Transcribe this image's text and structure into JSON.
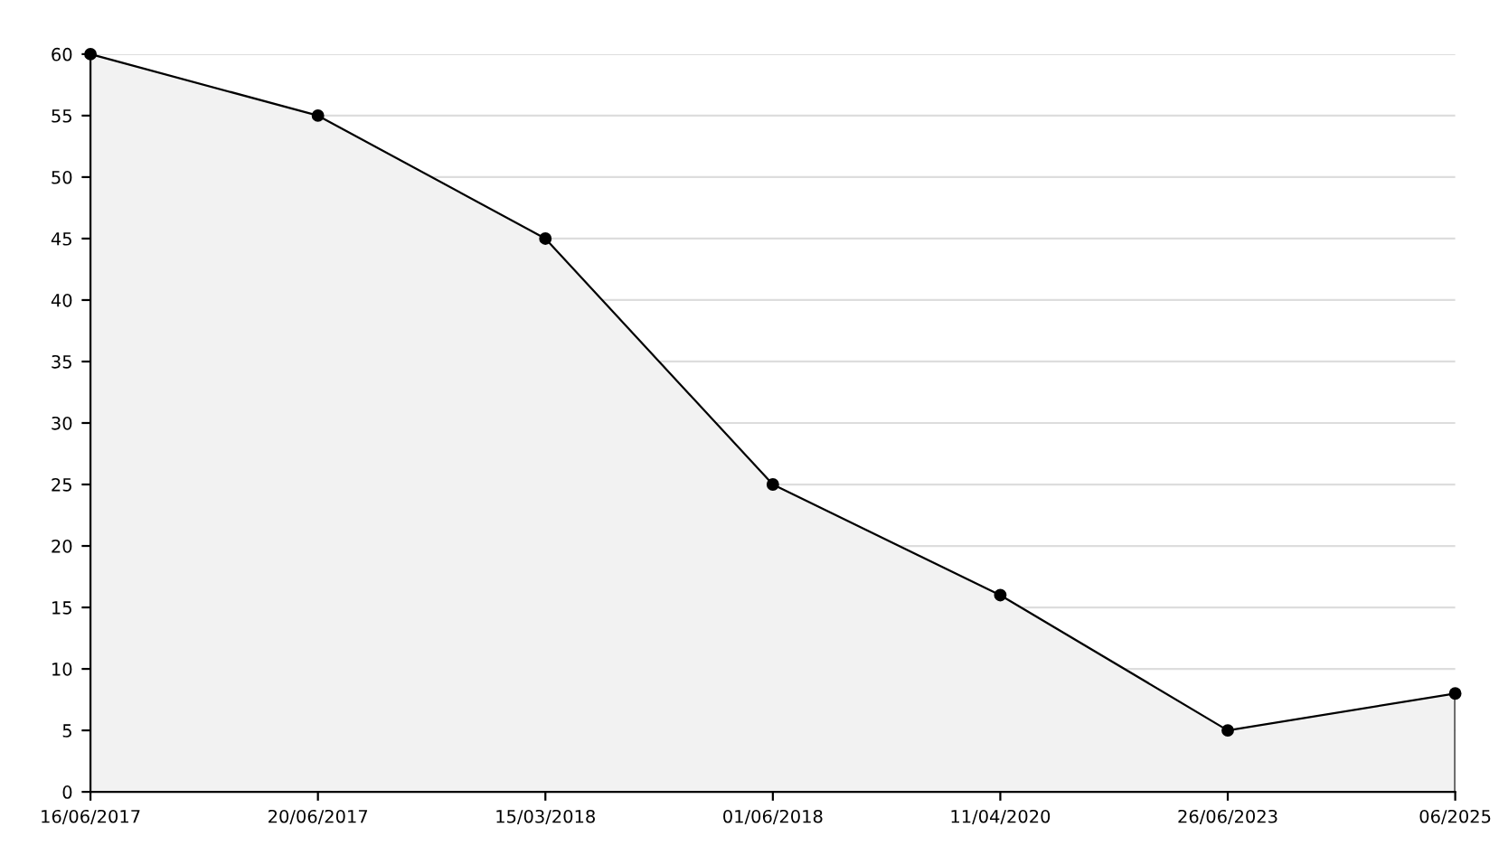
{
  "chart_data": {
    "type": "area",
    "categories": [
      "16/06/2017",
      "20/06/2017",
      "15/03/2018",
      "01/06/2018",
      "11/04/2020",
      "26/06/2023",
      "06/2025"
    ],
    "series": [
      {
        "color": "#000000",
        "values": [
          60,
          55,
          45,
          25,
          16,
          5,
          8
        ]
      }
    ],
    "ylim": [
      0,
      60
    ],
    "yticks": [
      0,
      5,
      10,
      15,
      20,
      25,
      30,
      35,
      40,
      45,
      50,
      55,
      60
    ],
    "grid": "y",
    "marker": "circle",
    "line_style": "solid",
    "legend": false
  }
}
